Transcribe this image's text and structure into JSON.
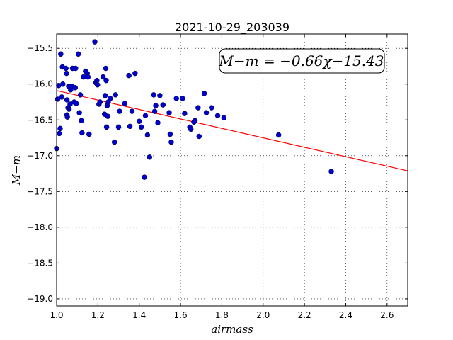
{
  "chart_data": {
    "type": "scatter",
    "title": "2021-10-29_203039",
    "xlabel": "airmass",
    "ylabel": "M−m",
    "xlim": [
      1.0,
      2.7
    ],
    "ylim": [
      -19.1,
      -15.3
    ],
    "y_inverted": true,
    "grid": true,
    "grid_style": "dotted",
    "xticks": [
      1.0,
      1.2,
      1.4,
      1.6,
      1.8,
      2.0,
      2.2,
      2.4,
      2.6
    ],
    "xtick_labels": [
      "1.0",
      "1.2",
      "1.4",
      "1.6",
      "1.8",
      "2.0",
      "2.2",
      "2.4",
      "2.6"
    ],
    "yticks": [
      -15.5,
      -16.0,
      -16.5,
      -17.0,
      -17.5,
      -18.0,
      -18.5,
      -19.0
    ],
    "ytick_labels": [
      "−15.5",
      "−16.0",
      "−16.5",
      "−17.0",
      "−17.5",
      "−18.0",
      "−18.5",
      "−19.0"
    ],
    "annotation": "M−m = −0.66χ−15.43",
    "legend_placement": "top-right",
    "fit": {
      "slope": -0.66,
      "intercept": -15.43,
      "x_range": [
        1.0,
        2.7
      ],
      "color": "#ff0000"
    },
    "marker_color": "#0000cc",
    "points": [
      [
        1.005,
        -16.21
      ],
      [
        1.01,
        -16.02
      ],
      [
        1.013,
        -16.69
      ],
      [
        1.017,
        -16.62
      ],
      [
        1.02,
        -15.58
      ],
      [
        1.025,
        -16.18
      ],
      [
        1.028,
        -15.76
      ],
      [
        1.03,
        -16.0
      ],
      [
        1.045,
        -15.78
      ],
      [
        1.048,
        -15.85
      ],
      [
        1.05,
        -16.22
      ],
      [
        1.05,
        -16.43
      ],
      [
        1.052,
        -16.46
      ],
      [
        1.055,
        -16.33
      ],
      [
        1.058,
        -16.03
      ],
      [
        1.06,
        -16.35
      ],
      [
        1.065,
        -16.28
      ],
      [
        1.068,
        -16.08
      ],
      [
        1.075,
        -16.03
      ],
      [
        1.077,
        -15.78
      ],
      [
        1.085,
        -16.25
      ],
      [
        1.09,
        -16.05
      ],
      [
        1.092,
        -15.78
      ],
      [
        1.095,
        -16.27
      ],
      [
        1.105,
        -15.58
      ],
      [
        1.11,
        -16.4
      ],
      [
        1.115,
        -16.15
      ],
      [
        1.12,
        -16.51
      ],
      [
        1.123,
        -16.68
      ],
      [
        1.13,
        -15.9
      ],
      [
        1.14,
        -15.82
      ],
      [
        1.148,
        -15.85
      ],
      [
        1.152,
        -15.9
      ],
      [
        1.157,
        -16.7
      ],
      [
        1.185,
        -15.41
      ],
      [
        1.19,
        -15.98
      ],
      [
        1.195,
        -15.95
      ],
      [
        1.198,
        -16.01
      ],
      [
        1.205,
        -16.28
      ],
      [
        1.21,
        -16.25
      ],
      [
        1.225,
        -15.9
      ],
      [
        1.232,
        -16.42
      ],
      [
        1.235,
        -16.16
      ],
      [
        1.238,
        -15.78
      ],
      [
        1.24,
        -15.95
      ],
      [
        1.242,
        -16.6
      ],
      [
        1.245,
        -16.3
      ],
      [
        1.248,
        -16.45
      ],
      [
        1.25,
        -16.25
      ],
      [
        1.26,
        -16.2
      ],
      [
        1.28,
        -16.81
      ],
      [
        1.285,
        -16.15
      ],
      [
        1.3,
        -16.6
      ],
      [
        1.305,
        -16.38
      ],
      [
        1.33,
        -16.27
      ],
      [
        1.35,
        -15.88
      ],
      [
        1.355,
        -16.59
      ],
      [
        1.365,
        -16.38
      ],
      [
        1.38,
        -15.85
      ],
      [
        1.4,
        -16.52
      ],
      [
        1.41,
        -16.6
      ],
      [
        1.425,
        -17.3
      ],
      [
        1.43,
        -16.44
      ],
      [
        1.44,
        -16.71
      ],
      [
        1.45,
        -17.02
      ],
      [
        1.47,
        -16.15
      ],
      [
        1.475,
        -16.38
      ],
      [
        1.48,
        -16.3
      ],
      [
        1.49,
        -16.54
      ],
      [
        1.5,
        -16.16
      ],
      [
        1.515,
        -16.29
      ],
      [
        1.545,
        -16.4
      ],
      [
        1.55,
        -16.7
      ],
      [
        1.555,
        -16.81
      ],
      [
        1.58,
        -16.2
      ],
      [
        1.61,
        -16.2
      ],
      [
        1.62,
        -16.41
      ],
      [
        1.645,
        -16.6
      ],
      [
        1.65,
        -16.63
      ],
      [
        1.665,
        -16.53
      ],
      [
        1.67,
        -16.51
      ],
      [
        1.685,
        -16.33
      ],
      [
        1.69,
        -16.73
      ],
      [
        1.715,
        -16.13
      ],
      [
        1.725,
        -16.4
      ],
      [
        1.75,
        -16.33
      ],
      [
        1.78,
        -16.44
      ],
      [
        1.81,
        -16.47
      ],
      [
        2.075,
        -16.71
      ],
      [
        2.33,
        -17.22
      ],
      [
        1.0,
        -16.9
      ]
    ]
  }
}
